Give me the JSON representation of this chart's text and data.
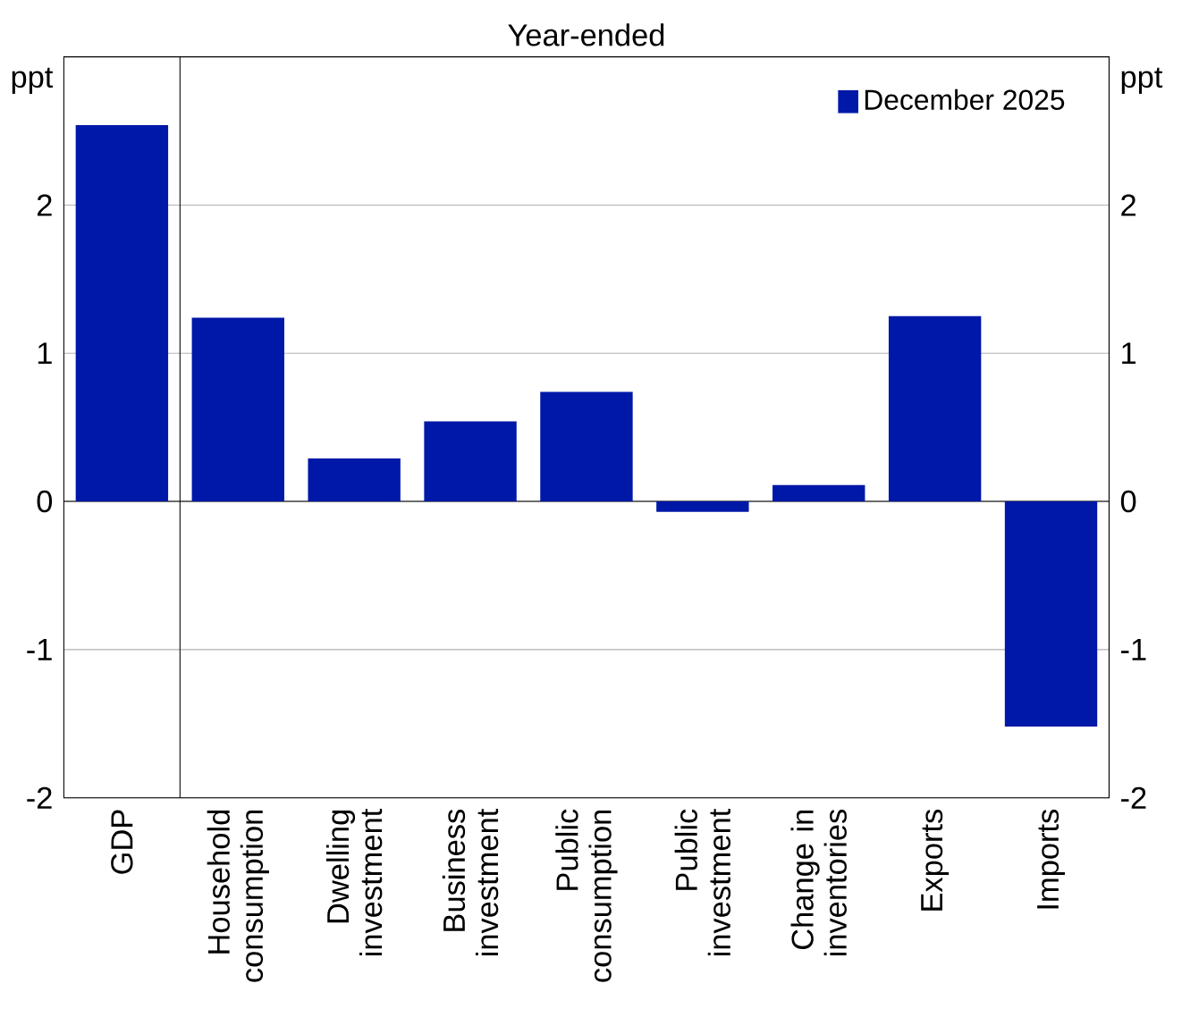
{
  "chart_data": {
    "type": "bar",
    "title": "Year-ended",
    "ylabel": "ppt",
    "y2label": "ppt",
    "categories": [
      "GDP",
      "Household consumption",
      "Dwelling investment",
      "Business investment",
      "Public consumption",
      "Public investment",
      "Change in inventories",
      "Exports",
      "Imports"
    ],
    "series": [
      {
        "name": "December 2025",
        "color": "#0018a8",
        "values": [
          2.54,
          1.24,
          0.29,
          0.54,
          0.74,
          -0.07,
          0.11,
          1.25,
          -1.52
        ]
      }
    ],
    "ylim": [
      -2,
      3
    ],
    "yticks": [
      -2,
      -1,
      0,
      1,
      2
    ],
    "y2lim": [
      -2,
      3
    ],
    "y2ticks": [
      -2,
      -1,
      0,
      1,
      2
    ],
    "grid": "y",
    "legend": "top right"
  }
}
